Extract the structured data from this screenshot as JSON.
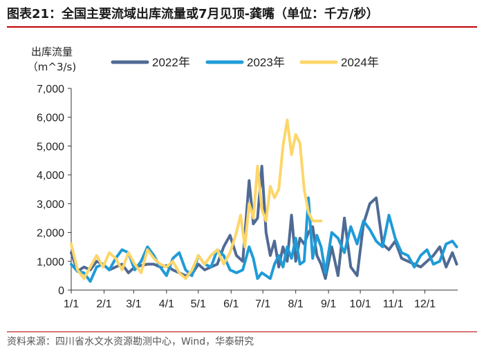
{
  "figure": {
    "label": "图表21：",
    "title": "全国主要流域出库流量或7月见顶-龚嘴（单位：千方/秒）",
    "source": "资料来源：四川省水文水资源勘测中心，Wind，华泰研究"
  },
  "colors": {
    "title_rule": "#c00000",
    "s2022": "#4f6a94",
    "s2023": "#1f9bd7",
    "s2024": "#fdd66a"
  },
  "chart_data": {
    "type": "line",
    "ylabel_line1": "出库流量",
    "ylabel_line2": "（m^3/s)",
    "ylim": [
      0,
      7000
    ],
    "yticks": [
      0,
      1000,
      2000,
      3000,
      4000,
      5000,
      6000,
      7000
    ],
    "ytick_labels": [
      "0",
      "1,000",
      "2,000",
      "3,000",
      "4,000",
      "5,000",
      "6,000",
      "7,000"
    ],
    "x_axis_days": [
      0,
      365
    ],
    "xticks": [
      0,
      31,
      59,
      90,
      120,
      151,
      181,
      212,
      243,
      273,
      304,
      334
    ],
    "xtick_labels": [
      "1/1",
      "2/1",
      "3/1",
      "4/1",
      "5/1",
      "6/1",
      "7/1",
      "8/1",
      "9/1",
      "10/1",
      "11/1",
      "12/1"
    ],
    "grid": false,
    "legend_position": "top",
    "series": [
      {
        "name": "2022年",
        "day": [
          0,
          6,
          12,
          18,
          24,
          30,
          36,
          42,
          48,
          54,
          60,
          66,
          72,
          78,
          84,
          90,
          96,
          102,
          108,
          114,
          120,
          126,
          132,
          138,
          144,
          150,
          156,
          162,
          168,
          172,
          176,
          180,
          184,
          188,
          192,
          196,
          200,
          204,
          208,
          212,
          216,
          220,
          224,
          228,
          232,
          236,
          240,
          246,
          252,
          258,
          264,
          270,
          276,
          282,
          288,
          294,
          300,
          306,
          312,
          318,
          324,
          330,
          336,
          342,
          348,
          354,
          360,
          364
        ],
        "values": [
          1300,
          650,
          800,
          700,
          1000,
          900,
          700,
          800,
          900,
          600,
          800,
          850,
          900,
          900,
          800,
          850,
          700,
          600,
          500,
          550,
          900,
          700,
          800,
          900,
          1500,
          1900,
          1200,
          1000,
          3800,
          2300,
          2500,
          4300,
          2000,
          1200,
          1700,
          800,
          1500,
          1000,
          2600,
          1000,
          1800,
          1600,
          2000,
          2200,
          1200,
          900,
          400,
          1500,
          500,
          2500,
          800,
          500,
          2300,
          3000,
          3200,
          1600,
          1400,
          1700,
          1100,
          1000,
          900,
          800,
          1000,
          1200,
          1500,
          800,
          1300,
          900
        ]
      },
      {
        "name": "2023年",
        "day": [
          0,
          6,
          12,
          18,
          24,
          30,
          36,
          42,
          48,
          54,
          60,
          66,
          72,
          78,
          84,
          90,
          96,
          102,
          108,
          114,
          120,
          126,
          132,
          138,
          144,
          150,
          156,
          162,
          168,
          172,
          176,
          180,
          184,
          188,
          192,
          196,
          200,
          204,
          208,
          212,
          216,
          220,
          224,
          228,
          232,
          236,
          240,
          246,
          252,
          258,
          264,
          270,
          276,
          282,
          288,
          294,
          300,
          306,
          312,
          318,
          324,
          330,
          336,
          342,
          348,
          354,
          360,
          364
        ],
        "values": [
          900,
          650,
          600,
          300,
          800,
          900,
          700,
          1100,
          1400,
          1300,
          700,
          1000,
          1500,
          1200,
          800,
          500,
          1100,
          1300,
          700,
          500,
          1200,
          900,
          800,
          1400,
          1200,
          700,
          600,
          700,
          1500,
          1100,
          400,
          600,
          500,
          400,
          900,
          1200,
          800,
          1500,
          1100,
          1800,
          900,
          1000,
          3200,
          1100,
          1900,
          1500,
          600,
          2000,
          1800,
          1300,
          2200,
          1600,
          2400,
          2100,
          1700,
          1500,
          2600,
          1800,
          1300,
          1200,
          800,
          1200,
          1400,
          900,
          1000,
          1600,
          1700,
          1500
        ]
      },
      {
        "name": "2024年",
        "day": [
          0,
          6,
          12,
          18,
          24,
          30,
          36,
          42,
          48,
          54,
          60,
          66,
          72,
          78,
          84,
          90,
          96,
          102,
          108,
          114,
          120,
          126,
          132,
          138,
          144,
          150,
          156,
          160,
          164,
          168,
          172,
          176,
          180,
          184,
          188,
          192,
          196,
          200,
          204,
          208,
          212,
          216,
          220,
          224,
          228,
          232,
          236
        ],
        "values": [
          1600,
          700,
          400,
          800,
          1200,
          800,
          1300,
          1100,
          700,
          1300,
          900,
          600,
          1400,
          1100,
          900,
          800,
          1000,
          600,
          400,
          700,
          1200,
          900,
          1200,
          1400,
          900,
          1300,
          2000,
          2600,
          1500,
          3000,
          2500,
          4300,
          2800,
          2400,
          3600,
          3200,
          3500,
          5000,
          5900,
          4700,
          5400,
          5100,
          3500,
          2700,
          2400,
          2400,
          2400
        ]
      }
    ]
  }
}
